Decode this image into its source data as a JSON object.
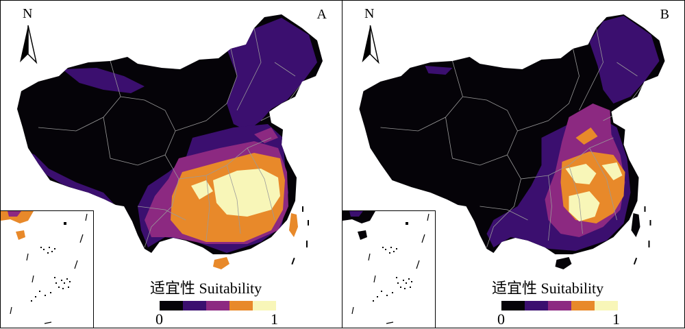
{
  "panels": [
    {
      "id": "A",
      "label": "A",
      "north": "N",
      "legend": {
        "title": "适宜性 Suitability",
        "min": "0",
        "max": "1"
      }
    },
    {
      "id": "B",
      "label": "B",
      "north": "N",
      "legend": {
        "title": "适宜性 Suitability",
        "min": "0",
        "max": "1"
      }
    }
  ],
  "legend_classes": [
    "#050308",
    "#3b0f6f",
    "#8c2981",
    "#e8892a",
    "#f8f6b8"
  ],
  "colors": {
    "background": "#050308",
    "low": "#3b0f6f",
    "mid": "#8c2981",
    "high": "#e8892a",
    "top": "#f8f6b8",
    "province_lines": "#9a9a9a"
  },
  "icons": {
    "north_arrow": "north-arrow-icon"
  }
}
